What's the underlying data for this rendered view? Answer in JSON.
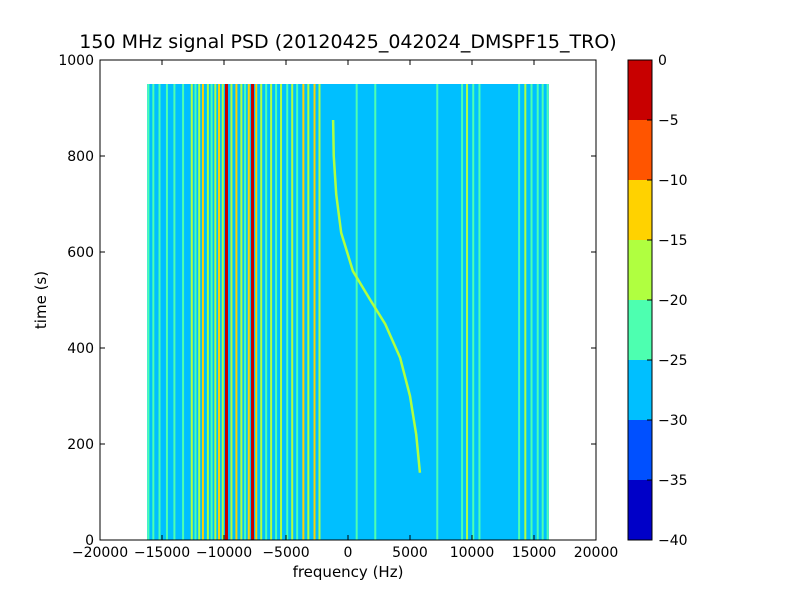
{
  "chart_data": {
    "type": "heatmap",
    "title": "150 MHz signal PSD (20120425_042024_DMSPF15_TRO)",
    "xlabel": "frequency (Hz)",
    "ylabel": "time (s)",
    "xlim": [
      -20000,
      20000
    ],
    "ylim": [
      0,
      1000
    ],
    "x_ticks": [
      -20000,
      -15000,
      -10000,
      -5000,
      0,
      5000,
      10000,
      15000,
      20000
    ],
    "x_tick_labels": [
      "−20000",
      "−15000",
      "−10000",
      "−5000",
      "0",
      "5000",
      "10000",
      "15000",
      "20000"
    ],
    "y_ticks": [
      0,
      200,
      400,
      600,
      800,
      1000
    ],
    "y_tick_labels": [
      "0",
      "200",
      "400",
      "600",
      "800",
      "1000"
    ],
    "data_extent": {
      "x": [
        -16200,
        16200
      ],
      "y": [
        0,
        950
      ]
    },
    "background_level": -27.5,
    "colorbar": {
      "levels": [
        -40,
        -35,
        -30,
        -25,
        -20,
        -15,
        -10,
        -5,
        0
      ],
      "tick_labels": [
        "−40",
        "−35",
        "−30",
        "−25",
        "−20",
        "−15",
        "−10",
        "−5",
        "0"
      ],
      "colors": [
        "#0000c8",
        "#0050ff",
        "#00bfff",
        "#4dffb0",
        "#b0ff40",
        "#ffd200",
        "#ff5500",
        "#c80000"
      ]
    },
    "vertical_lines": [
      {
        "x": -16100,
        "level": -22.5
      },
      {
        "x": -15700,
        "level": -22.5
      },
      {
        "x": -15200,
        "level": -22.5
      },
      {
        "x": -14600,
        "level": -22.5
      },
      {
        "x": -14000,
        "level": -22.5
      },
      {
        "x": -13300,
        "level": -22.5
      },
      {
        "x": -12600,
        "level": -17.5
      },
      {
        "x": -12300,
        "level": -22.5
      },
      {
        "x": -12000,
        "level": -17.5
      },
      {
        "x": -11700,
        "level": -12.5
      },
      {
        "x": -11300,
        "level": -17.5
      },
      {
        "x": -11000,
        "level": -22.5
      },
      {
        "x": -10700,
        "level": -17.5
      },
      {
        "x": -10400,
        "level": -12.5
      },
      {
        "x": -10100,
        "level": -17.5
      },
      {
        "x": -9800,
        "level": -2.5
      },
      {
        "x": -9400,
        "level": -17.5
      },
      {
        "x": -9000,
        "level": -12.5
      },
      {
        "x": -8600,
        "level": -17.5
      },
      {
        "x": -8300,
        "level": -22.5
      },
      {
        "x": -8000,
        "level": -12.5
      },
      {
        "x": -7700,
        "level": -2.5
      },
      {
        "x": -7400,
        "level": -12.5
      },
      {
        "x": -7000,
        "level": -17.5
      },
      {
        "x": -6600,
        "level": -22.5
      },
      {
        "x": -6200,
        "level": -17.5
      },
      {
        "x": -5800,
        "level": -22.5
      },
      {
        "x": -5400,
        "level": -17.5
      },
      {
        "x": -4900,
        "level": -22.5
      },
      {
        "x": -4500,
        "level": -17.5
      },
      {
        "x": -4100,
        "level": -22.5
      },
      {
        "x": -3600,
        "level": -12.5
      },
      {
        "x": -3200,
        "level": -17.5
      },
      {
        "x": -2700,
        "level": -12.5
      },
      {
        "x": -2300,
        "level": -17.5
      },
      {
        "x": 700,
        "level": -22.5
      },
      {
        "x": 2200,
        "level": -22.5
      },
      {
        "x": 7200,
        "level": -22.5
      },
      {
        "x": 9200,
        "level": -22.5
      },
      {
        "x": 9600,
        "level": -17.5
      },
      {
        "x": 10100,
        "level": -22.5
      },
      {
        "x": 10600,
        "level": -22.5
      },
      {
        "x": 13800,
        "level": -22.5
      },
      {
        "x": 14300,
        "level": -17.5
      },
      {
        "x": 14800,
        "level": -22.5
      },
      {
        "x": 15300,
        "level": -22.5
      },
      {
        "x": 15700,
        "level": -22.5
      },
      {
        "x": 16100,
        "level": -22.5
      }
    ],
    "doppler_curve": {
      "level": -17.5,
      "points": [
        {
          "x": -1200,
          "y": 875
        },
        {
          "x": -1150,
          "y": 800
        },
        {
          "x": -950,
          "y": 720
        },
        {
          "x": -550,
          "y": 640
        },
        {
          "x": 400,
          "y": 560
        },
        {
          "x": 1800,
          "y": 500
        },
        {
          "x": 3000,
          "y": 450
        },
        {
          "x": 4200,
          "y": 380
        },
        {
          "x": 5000,
          "y": 300
        },
        {
          "x": 5500,
          "y": 220
        },
        {
          "x": 5800,
          "y": 140
        }
      ]
    }
  }
}
